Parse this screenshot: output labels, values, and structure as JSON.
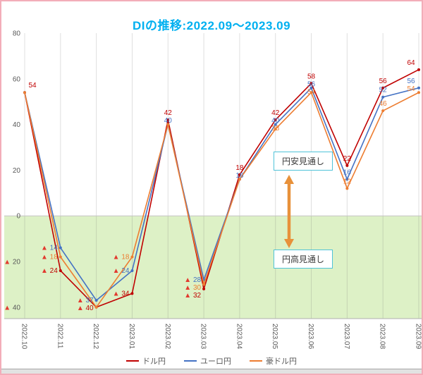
{
  "window": {
    "border_color": "#f3adb9"
  },
  "chart_data": {
    "type": "line",
    "title": "DIの推移:2022.09〜2023.09",
    "title_color": "#00b0f0",
    "categories": [
      "2022.10",
      "2022.11",
      "2022.12",
      "2023.01",
      "2023.02",
      "2023.03",
      "2023.04",
      "2023.05",
      "2023.06",
      "2023.07",
      "2023.08",
      "2023.09"
    ],
    "series": [
      {
        "name": "ドル円",
        "color": "#c00000",
        "values": [
          54,
          -24,
          -40,
          -34,
          42,
          -32,
          18,
          42,
          58,
          22,
          56,
          64
        ]
      },
      {
        "name": "ユーロ円",
        "color": "#4472c4",
        "values": [
          54,
          -14,
          -37,
          -24,
          40,
          -28,
          16,
          40,
          56,
          16,
          52,
          56
        ]
      },
      {
        "name": "豪ドル円",
        "color": "#ed7d31",
        "values": [
          54,
          -18,
          -40,
          -18,
          40,
          -30,
          16,
          38,
          54,
          12,
          46,
          54
        ]
      }
    ],
    "y_axis": {
      "max": 80,
      "min": -40,
      "tick_step": 20,
      "ticks": [
        80,
        60,
        40,
        20,
        0,
        -20,
        -40
      ],
      "negative_prefix": "▲"
    },
    "x_axis": {
      "label_rotation": 90
    },
    "data_labels": true,
    "negative_region_color": "#ddf1c6",
    "gridlines": "vertical",
    "gridline_color": "#9c9c9c",
    "axis_text_color": "#595959",
    "negative_marker_color": "#e23a2e",
    "annotations": [
      {
        "text": "円安見通し",
        "border_color": "#4fc3d9"
      },
      {
        "text": "円高見通し",
        "border_color": "#4fc3d9"
      }
    ],
    "arrow": {
      "color": "#e8913a",
      "direction": "vertical-double"
    },
    "legend": {
      "position": "bottom"
    }
  }
}
